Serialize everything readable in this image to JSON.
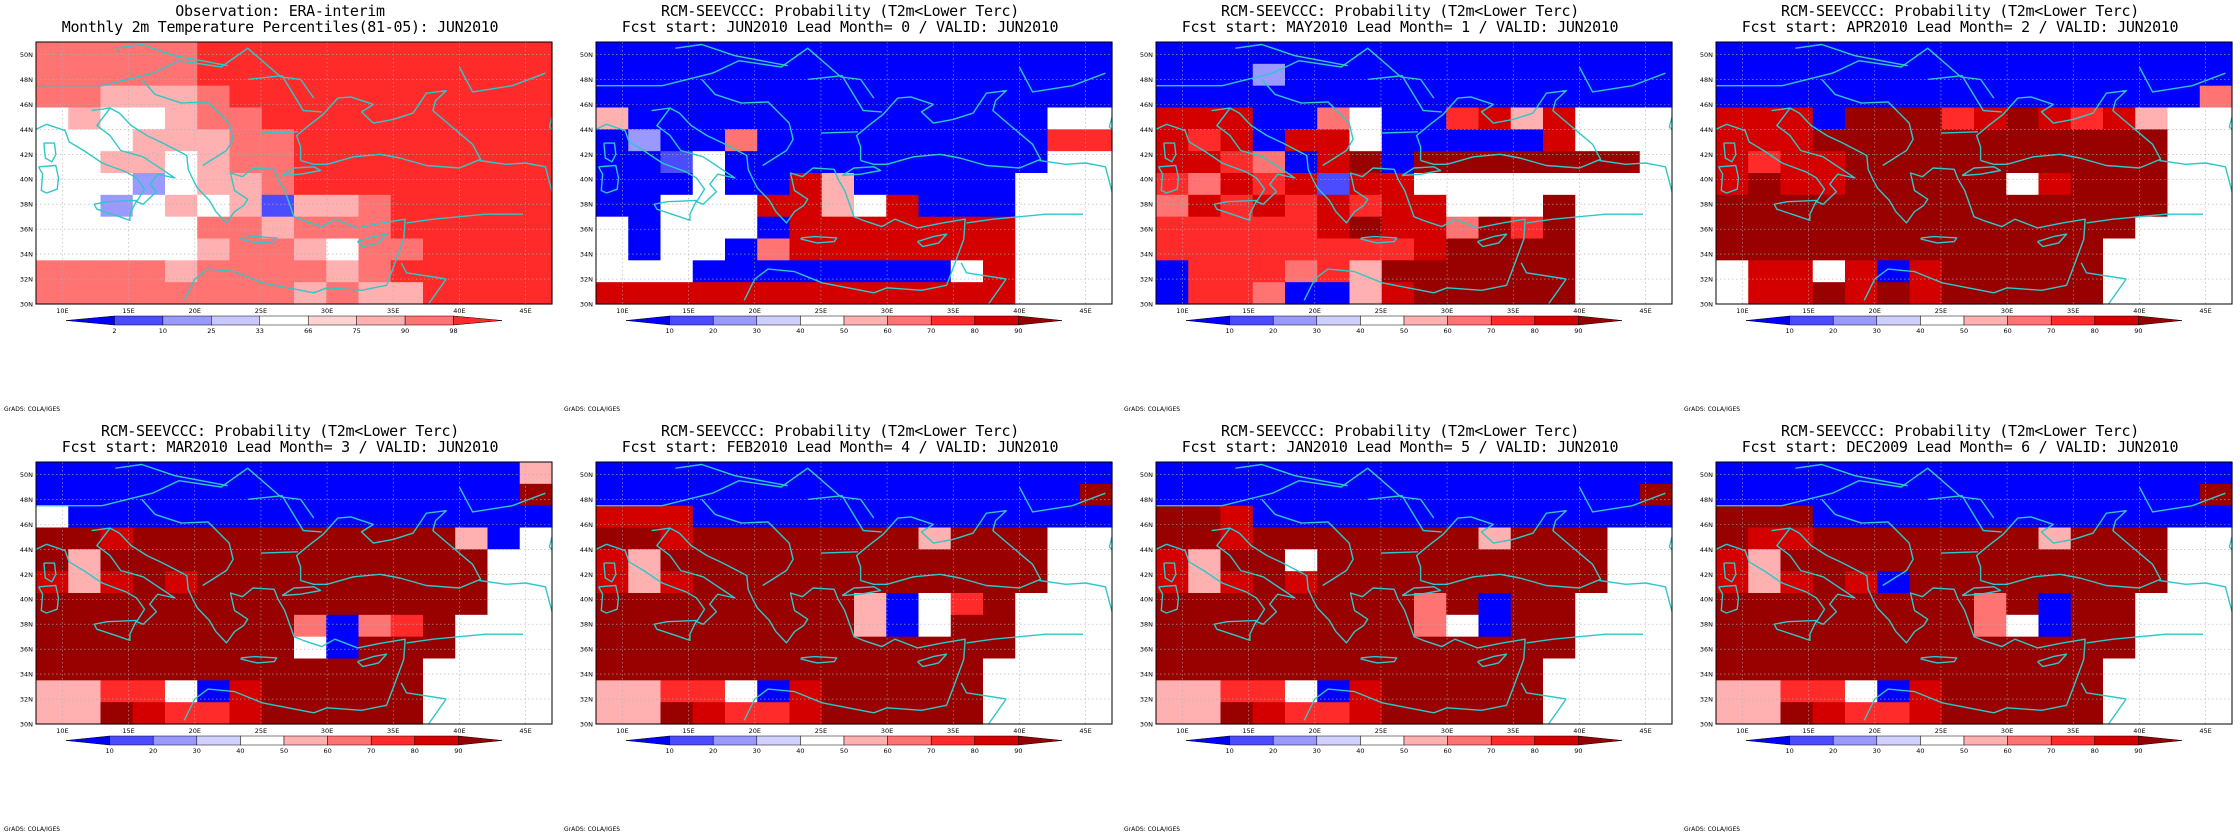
{
  "panels": [
    {
      "title1": "Observation: ERA-interim",
      "title2": "Monthly 2m Temperature Percentiles(81-05): JUN2010"
    },
    {
      "title1": "RCM-SEEVCCC: Probability (T2m<Lower Terc)",
      "title2": "Fcst start: JUN2010  Lead Month= 0 / VALID: JUN2010"
    },
    {
      "title1": "RCM-SEEVCCC: Probability (T2m<Lower Terc)",
      "title2": "Fcst start: MAY2010  Lead Month= 1 / VALID: JUN2010"
    },
    {
      "title1": "RCM-SEEVCCC: Probability (T2m<Lower Terc)",
      "title2": "Fcst start: APR2010  Lead Month= 2 / VALID: JUN2010"
    },
    {
      "title1": "RCM-SEEVCCC: Probability (T2m<Lower Terc)",
      "title2": "Fcst start: MAR2010  Lead Month= 3 / VALID: JUN2010"
    },
    {
      "title1": "RCM-SEEVCCC: Probability (T2m<Lower Terc)",
      "title2": "Fcst start: FEB2010  Lead Month= 4 / VALID: JUN2010"
    },
    {
      "title1": "RCM-SEEVCCC: Probability (T2m<Lower Terc)",
      "title2": "Fcst start: JAN2010  Lead Month= 5 / VALID: JUN2010"
    },
    {
      "title1": "RCM-SEEVCCC: Probability (T2m<Lower Terc)",
      "title2": "Fcst start: DEC2009  Lead Month= 6 / VALID: JUN2010"
    }
  ],
  "lat_labels": [
    "50N",
    "48N",
    "46N",
    "44N",
    "42N",
    "40N",
    "38N",
    "36N",
    "34N",
    "32N",
    "30N"
  ],
  "lon_labels": [
    "10E",
    "15E",
    "20E",
    "25E",
    "30E",
    "35E",
    "40E",
    "45E"
  ],
  "obs_colorbar_labels": [
    "2",
    "10",
    "25",
    "33",
    "66",
    "75",
    "90",
    "98"
  ],
  "prob_colorbar_labels": [
    "10",
    "20",
    "30",
    "40",
    "50",
    "60",
    "70",
    "80",
    "90"
  ],
  "credit": "GrADS: COLA/IGES",
  "colors": {
    "coast": "#2ec8c8",
    "b3": "#0000ff",
    "b2": "#4b4bff",
    "b1": "#9999ff",
    "w": "#ffffff",
    "r1": "#ffb0b0",
    "r2": "#ff7373",
    "r3": "#ff2a2a",
    "r4": "#d40000",
    "r5": "#990000"
  },
  "grids": {
    "obs": [
      "r2 r2 r2 r2 r2 r3 r3 r3 r3 r3 r3 r3 r3 r3 r3 r3",
      "r2 r2 r2 r2 r2 r3 r3 r3 r3 r3 r3 r3 r3 r3 r3 r3",
      "r2 r2 r1 r1 r1 r2 r3 r3 r3 r3 r3 r3 r3 r3 r3 r3",
      "w r1 w w r1 r2 r2 r3 r3 r3 r3 r3 r3 r3 r3 r3",
      "w w w r1 r1 r1 r2 r2 r3 r3 r3 r3 r3 r3 r3 r3",
      "w w r1 r1 w r1 r2 r2 r3 r3 r3 r3 r3 r3 r3 r3",
      "w w w b1 w r1 r1 r2 r3 r3 r3 r3 r3 r3 r3 r3",
      "w w b1 w r1 w r1 b2 r1 r1 r2 r3 r3 r3 r3 r3",
      "w w w w w r2 r2 r1 r2 r2 r2 r3 r3 r3 r3 r3",
      "w w w w w r1 r2 r2 r1 w r2 r2 r3 r3 r3 r3",
      "r2 r2 r2 r2 r1 r2 r2 r2 r2 r1 r2 r3 r3 r3 r3 r3",
      "r2 r2 r2 r2 r2 r2 r2 r2 r1 r2 r1 r1 r3 r3 r3 r3"
    ],
    "lead0": [
      "b3 b3 b3 b3 b3 b3 b3 b3 b3 b3 b3 b3 b3 b3 b3 b3",
      "b3 b3 b3 b3 b3 b3 b3 b3 b3 b3 b3 b3 b3 b3 b3 b3",
      "b3 b3 b3 b3 b3 b3 b3 b3 b3 b3 b3 b3 b3 b3 b3 b3",
      "r1 b3 b3 b3 b3 b3 b3 b3 b3 b3 b3 b3 b3 b3 w w",
      "b3 b1 b3 b3 r2 b3 b3 b3 b3 b3 b3 b3 b3 b3 r3 r3",
      "b3 b3 b2 w b3 b3 b3 b3 b3 b3 b3 b3 b3 b3 w w",
      "b3 b3 b3 w b3 b3 r4 r1 b3 b3 b3 b3 b3 w w w",
      "b3 b3 w w w r4 r4 r1 w r4 b3 b3 b3 w w w",
      "w b3 w w w b3 r4 r4 r4 r4 r4 r4 r4 w w w",
      "w b3 w w b3 r2 r4 r4 r4 r4 r4 r4 r4 w w w",
      "w w w b3 b3 b3 b3 b3 b3 b3 b3 w r4 w w w",
      "r4 r4 r4 r4 r4 r4 r4 r4 r4 r4 r4 r4 r4 w w w"
    ],
    "lead1": [
      "b3 b3 b3 b3 b3 b3 b3 b3 b3 b3 b3 b3 b3 b3 b3 b3",
      "b3 b3 b3 b1 b3 b3 b3 b3 b3 b3 b3 b3 b3 b3 b3 b3",
      "b3 b3 b3 b3 b3 b3 b3 b3 b3 b3 b3 b3 b3 b3 b3 b3",
      "r4 r4 r4 b3 b3 r2 w b3 b3 r3 r4 r1 r4 w w w",
      "r4 r3 r4 b3 r4 r4 w b3 b3 b3 b3 b3 r4 w w w",
      "r4 r4 r3 r2 b3 r4 r5 b3 r5 r5 r5 r5 r5 r5 r5 w",
      "r3 r2 r4 r3 r4 b2 r4 r4 w w w w w w w w",
      "r2 r4 r3 r4 r3 r4 r3 r4 r4 w w w r5 w w w",
      "r3 r3 r3 r3 r3 r4 r5 r4 r4 r2 r5 r3 r5 w w w",
      "r3 r3 r3 r3 r3 r3 r3 r3 r4 r5 r5 r5 r5 w w w",
      "b3 r3 r3 r3 r2 r3 r1 r5 r5 r5 r5 r5 r5 w w w",
      "b3 r3 r3 r2 b3 b3 r1 r4 r5 r5 r5 r5 r5 w w w"
    ],
    "lead2": [
      "b3 b3 b3 b3 b3 b3 b3 b3 b3 b3 b3 b3 b3 b3 b3 b3",
      "b3 b3 b3 b3 b3 b3 b3 b3 b3 b3 b3 b3 b3 b3 b3 b3",
      "b3 b3 b3 b3 b3 b3 b3 b3 b3 b3 b3 b3 b3 b3 b3 r2",
      "r4 r4 r4 b3 r5 r5 r5 r3 r4 r5 r4 r3 r4 r1 w w",
      "r4 r4 r4 r5 r5 r5 r5 r5 r5 r5 r5 r5 r5 r5 w w",
      "r4 r3 r4 r4 r5 r5 r5 r5 r5 r5 r5 r5 r5 r5 w w",
      "r4 r5 r4 r4 r5 r5 r5 r5 r5 w r4 r5 r5 r5 w w",
      "r5 r5 r5 r5 r5 r5 r5 r5 r5 r5 r5 r5 r5 r5 w w",
      "r5 r5 r5 r5 r5 r5 r5 r5 r5 r5 r5 r5 r5 w w w",
      "r5 r5 r5 r5 r5 r5 r5 r5 r5 r5 r5 r5 w w w w",
      "w r4 r4 w r4 b3 r4 r5 r5 r5 r5 r5 w w w w",
      "w r4 r4 r5 r4 r5 r4 r5 r5 r5 r5 r5 w w w w"
    ],
    "lead3": [
      "b3 b3 b3 b3 b3 b3 b3 b3 b3 b3 b3 b3 b3 b3 b3 r1",
      "b3 b3 b3 b3 b3 b3 b3 b3 b3 b3 b3 b3 b3 b3 b3 r5",
      "w b3 b3 b3 b3 b3 b3 b3 b3 b3 b3 b3 b3 b3 b3 b3",
      "r5 r5 r4 r5 r5 r5 r5 r5 r5 r5 r5 r5 r5 r1 b3 w",
      "r5 r1 r5 r5 r5 r5 r5 r5 r5 r5 r5 r5 r5 r5 w w",
      "r4 r1 r4 r5 r4 r5 r5 r5 r5 r5 r5 r5 r5 r5 w w",
      "r5 r5 r5 r5 r5 r5 r5 r5 r5 r5 r5 r5 r5 r5 w w",
      "r5 r5 r5 r5 r5 r5 r5 r5 r2 b3 r2 r3 r5 w w w",
      "r5 r5 r5 r5 r5 r5 r5 r5 w b3 r5 r5 r5 w w w",
      "r5 r5 r5 r5 r5 r5 r5 r5 r5 r5 r5 r5 w w w w",
      "r1 r1 r3 r3 w b3 r4 r5 r5 r5 r5 r5 w w w w",
      "r1 r1 r5 r4 r3 r3 r4 r5 r5 r5 r5 r5 w w w w"
    ],
    "lead4": [
      "b3 b3 b3 b3 b3 b3 b3 b3 b3 b3 b3 b3 b3 b3 b3 b3",
      "b3 b3 b3 b3 b3 b3 b3 b3 b3 b3 b3 b3 b3 b3 b3 r5",
      "r4 r4 r4 b3 b3 b3 b3 b3 b3 b3 b3 b3 b3 b3 b3 b3",
      "r5 r5 r4 r5 r5 r5 r5 r5 r5 r5 r1 r5 r5 r5 w w",
      "r4 r1 r5 r5 r5 r5 r5 r5 r5 r5 r5 r5 r5 r5 w w",
      "r4 r1 r4 r5 r5 r5 r5 r5 r5 r5 r5 r5 r5 r5 w w",
      "r5 r5 r5 r5 r5 r5 r5 r5 r1 b3 w r3 r5 w w w",
      "r5 r5 r5 r5 r5 r5 r5 r5 r1 b3 w r5 r5 w w w",
      "r5 r5 r5 r5 r5 r5 r5 r5 r5 r5 r5 r5 r5 w w w",
      "r5 r5 r5 r5 r5 r5 r5 r5 r5 r5 r5 r5 w w w w",
      "r1 r1 r3 r3 w b3 r4 r5 r5 r5 r5 r5 w w w w",
      "r1 r1 r5 r4 r3 r3 r4 r5 r5 r5 r5 r5 w w w w"
    ],
    "lead5": [
      "b3 b3 b3 b3 b3 b3 b3 b3 b3 b3 b3 b3 b3 b3 b3 b3",
      "b3 b3 b3 b3 b3 b3 b3 b3 b3 b3 b3 b3 b3 b3 b3 r5",
      "r5 r5 r4 b3 b3 b3 b3 b3 b3 b3 b3 b3 b3 b3 b3 b3",
      "r5 r5 r4 r5 r5 r5 r5 r5 r5 r5 r1 r5 r5 r5 w w",
      "r4 r1 r5 r5 w r5 r5 r5 r5 r5 r5 r5 r5 r5 w w",
      "r4 r1 r4 r5 r4 r5 r5 r5 r5 r5 r5 r5 r5 r5 w w",
      "r5 r5 r5 r5 r5 r5 r5 r5 r2 r5 b3 r5 r5 w w w",
      "r5 r5 r5 r5 r5 r5 r5 r5 r2 w b3 r5 r5 w w w",
      "r5 r5 r5 r5 r5 r5 r5 r5 r5 r5 r5 r5 r5 w w w",
      "r5 r5 r5 r5 r5 r5 r5 r5 r5 r5 r5 r5 w w w w",
      "r1 r1 r3 r3 w b3 r4 r5 r5 r5 r5 r5 w w w w",
      "r1 r1 r5 r4 r3 r3 r4 r5 r5 r5 r5 r5 w w w w"
    ],
    "lead6": [
      "b3 b3 b3 b3 b3 b3 b3 b3 b3 b3 b3 b3 b3 b3 b3 b3",
      "b3 b3 b3 b3 b3 b3 b3 b3 b3 b3 b3 b3 b3 b3 b3 r5",
      "r5 r5 r5 b3 b3 b3 b3 b3 b3 b3 b3 b3 b3 b3 b3 b3",
      "r5 r4 r4 r5 r5 r5 r5 r5 r5 r5 r1 r5 r5 r5 w w",
      "r4 r1 r5 r5 r5 r5 r5 r5 r5 r5 r5 r5 r5 r5 w w",
      "r4 r1 r4 r5 r4 b3 r5 r5 r5 r5 r5 r5 r5 r5 w w",
      "r5 r5 r5 r5 r5 r5 r5 r5 r2 r5 b3 r5 r5 w w w",
      "r5 r5 r5 r5 r5 r5 r5 r5 r2 w b3 r5 r5 w w w",
      "r5 r5 r5 r5 r5 r5 r5 r5 r5 r5 r5 r5 r5 w w w",
      "r5 r5 r5 r5 r5 r5 r5 r5 r5 r5 r5 r5 w w w w",
      "r1 r1 r3 r3 w b3 r4 r5 r5 r5 r5 r5 w w w w",
      "r1 r1 r5 r4 r3 r3 r4 r5 r5 r5 r5 r5 w w w w"
    ]
  },
  "panel_grid_keys": [
    "obs",
    "lead0",
    "lead1",
    "lead2",
    "lead3",
    "lead4",
    "lead5",
    "lead6"
  ]
}
